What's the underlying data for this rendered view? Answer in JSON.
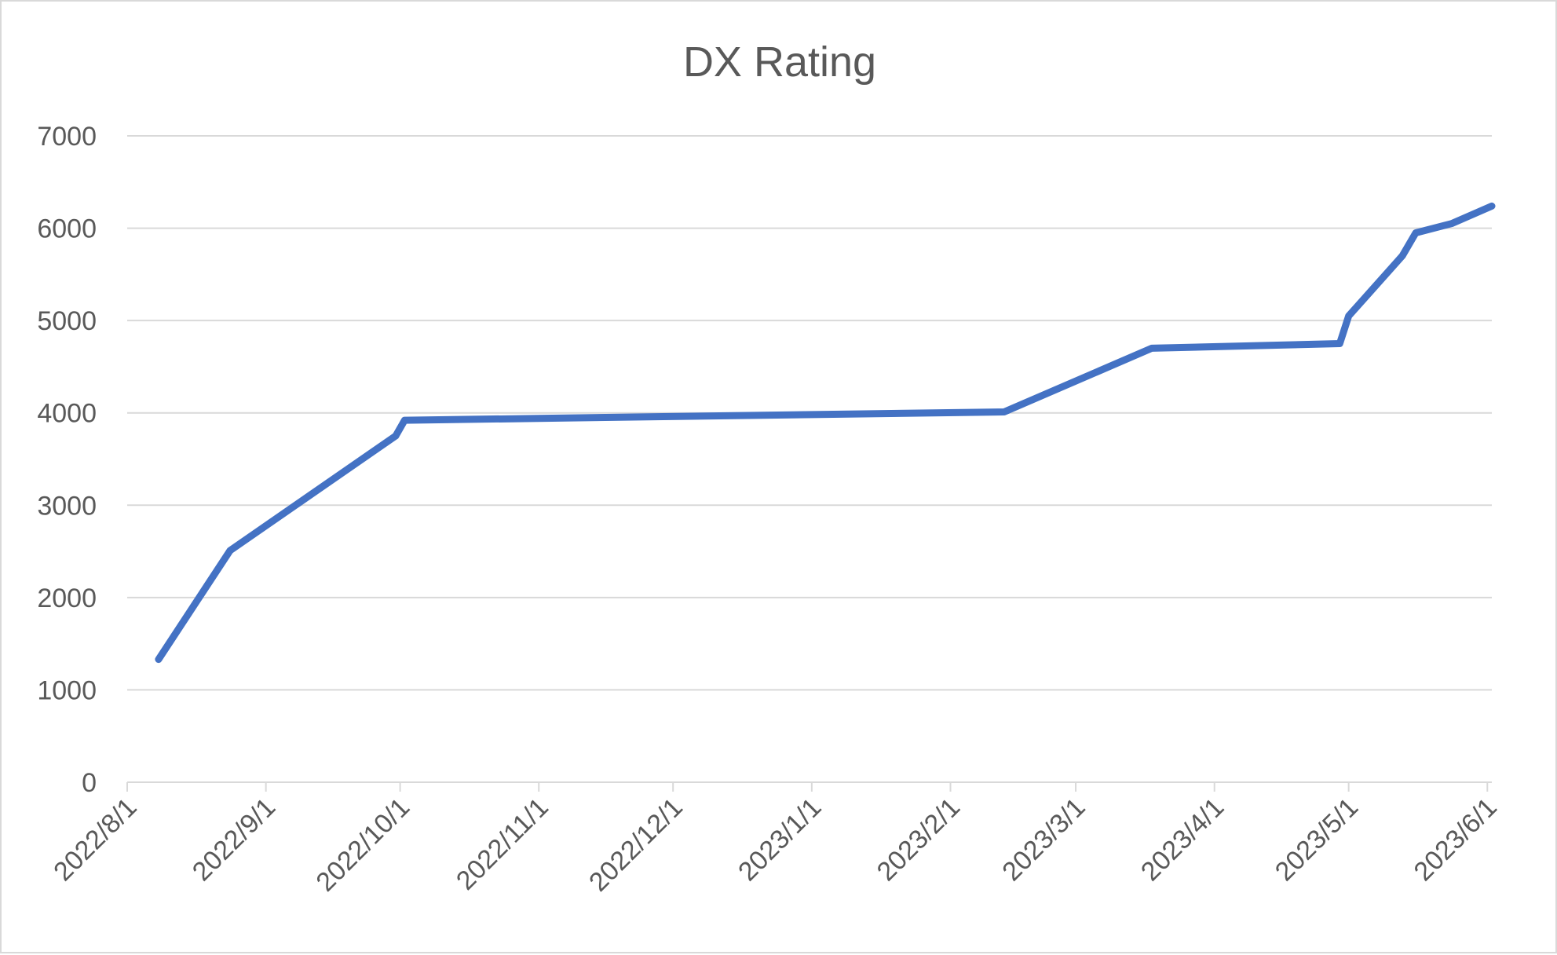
{
  "chart_data": {
    "type": "line",
    "title": "DX Rating",
    "xlabel": "",
    "ylabel": "",
    "x_type": "date",
    "xlim": [
      "2022-08-01",
      "2023-06-02"
    ],
    "ylim": [
      0,
      7000
    ],
    "y_ticks": [
      0,
      1000,
      2000,
      3000,
      4000,
      5000,
      6000,
      7000
    ],
    "y_tick_labels": [
      "0",
      "1000",
      "2000",
      "3000",
      "4000",
      "5000",
      "6000",
      "7000"
    ],
    "x_ticks": [
      "2022-08-01",
      "2022-09-01",
      "2022-10-01",
      "2022-11-01",
      "2022-12-01",
      "2023-01-01",
      "2023-02-01",
      "2023-03-01",
      "2023-04-01",
      "2023-05-01",
      "2023-06-01"
    ],
    "x_tick_labels": [
      "2022/8/1",
      "2022/9/1",
      "2022/10/1",
      "2022/11/1",
      "2022/12/1",
      "2023/1/1",
      "2023/2/1",
      "2023/3/1",
      "2023/4/1",
      "2023/5/1",
      "2023/6/1"
    ],
    "grid": "horizontal",
    "legend": "none",
    "line_color": "#4472c4",
    "series": [
      {
        "x": [
          "2022-08-08",
          "2022-08-24",
          "2022-09-30",
          "2022-10-02",
          "2023-02-13",
          "2023-03-18",
          "2023-04-29",
          "2023-05-01",
          "2023-05-13",
          "2023-05-16",
          "2023-05-24",
          "2023-06-02"
        ],
        "y": [
          1330,
          2510,
          3750,
          3920,
          4010,
          4700,
          4750,
          5050,
          5700,
          5950,
          6050,
          6240
        ]
      }
    ]
  }
}
